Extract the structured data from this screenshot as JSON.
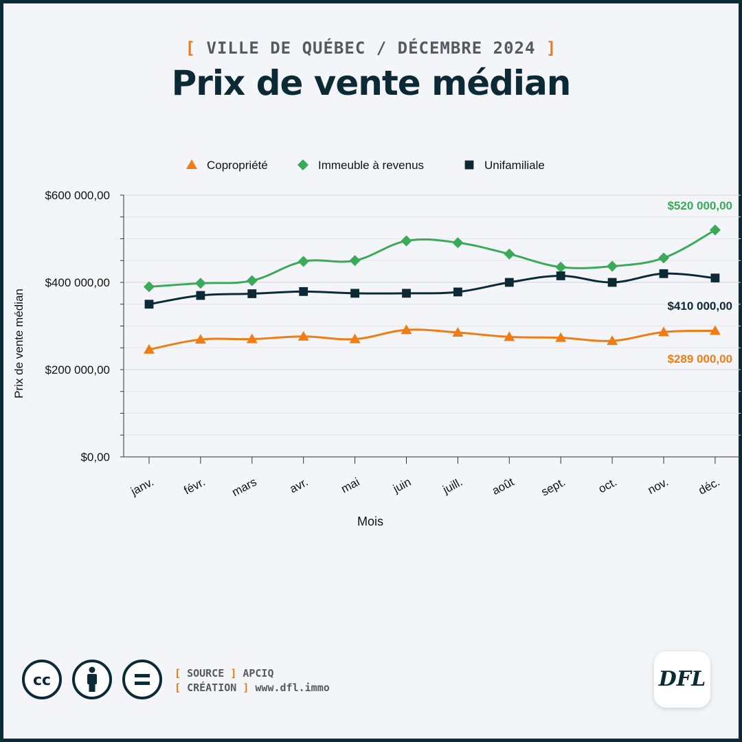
{
  "header": {
    "kicker_open": "[",
    "kicker_text": "VILLE DE QUÉBEC / DÉCEMBRE 2024",
    "kicker_close": "]",
    "title": "Prix de vente médian"
  },
  "chart_data": {
    "type": "line",
    "ylabel": "Prix de vente médian",
    "xlabel": "Mois",
    "ylim": [
      0,
      600000
    ],
    "y_ticks": [
      0,
      200000,
      400000,
      600000
    ],
    "y_tick_labels": [
      "$0,00",
      "$200 000,00",
      "$400 000,00",
      "$600 000,00"
    ],
    "categories": [
      "janv.",
      "févr.",
      "mars",
      "avr.",
      "mai",
      "juin",
      "juill.",
      "août",
      "sept.",
      "oct.",
      "nov.",
      "déc."
    ],
    "grid": true,
    "legend_position": "top-center",
    "series": [
      {
        "name": "Copropriété",
        "marker": "triangle",
        "color": "#f07d14",
        "values": [
          246000,
          269000,
          270000,
          276000,
          270000,
          291000,
          285000,
          275000,
          273000,
          266000,
          286000,
          289000
        ],
        "end_label": "$289 000,00"
      },
      {
        "name": "Immeuble à revenus",
        "marker": "diamond",
        "color": "#3aaa5a",
        "values": [
          390000,
          398000,
          404000,
          448000,
          450000,
          495000,
          491000,
          465000,
          435000,
          437000,
          456000,
          520000
        ],
        "end_label": "$520 000,00"
      },
      {
        "name": "Unifamiliale",
        "marker": "square",
        "color": "#0b2a36",
        "values": [
          350000,
          370000,
          374000,
          379000,
          375000,
          375000,
          378000,
          400000,
          415000,
          400000,
          420000,
          410000
        ],
        "end_label": "$410 000,00"
      }
    ]
  },
  "footer": {
    "source_label": "SOURCE",
    "source_value": "APCIQ",
    "creation_label": "CRÉATION",
    "creation_value": "www.dfl.immo",
    "bracket_open": "[",
    "bracket_close": "]",
    "logo_text": "DFL",
    "license_icons": [
      "cc-icon",
      "attribution-icon",
      "no-derivatives-icon"
    ]
  }
}
